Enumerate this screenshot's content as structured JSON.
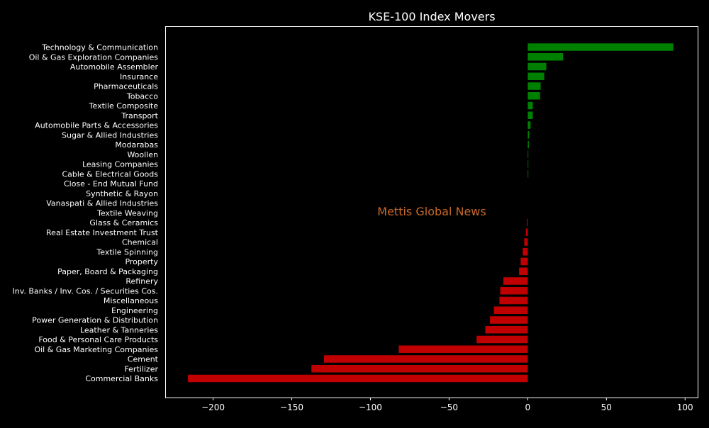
{
  "chart_data": {
    "type": "bar",
    "orientation": "horizontal",
    "title": "KSE-100 Index Movers",
    "watermark": "Mettis Global News",
    "xlabel": "",
    "ylabel": "",
    "xlim": [
      -230,
      108
    ],
    "xticks": [
      -200,
      -150,
      -100,
      -50,
      0,
      50,
      100
    ],
    "xtick_labels": [
      "−200",
      "−150",
      "−100",
      "−50",
      "0",
      "50",
      "100"
    ],
    "grid": false,
    "colors": {
      "positive": "#008000",
      "negative": "#c00000",
      "background": "#000000",
      "text": "#ffffff",
      "watermark": "#c8692a"
    },
    "categories": [
      "Technology & Communication",
      "Oil & Gas Exploration Companies",
      "Automobile Assembler",
      "Insurance",
      "Pharmaceuticals",
      "Tobacco",
      "Textile Composite",
      "Transport",
      "Automobile Parts & Accessories",
      "Sugar & Allied Industries",
      "Modarabas",
      "Woollen",
      "Leasing Companies",
      "Cable & Electrical Goods",
      "Close - End Mutual Fund",
      "Synthetic & Rayon",
      "Vanaspati & Allied Industries",
      "Textile Weaving",
      "Glass & Ceramics",
      "Real Estate Investment Trust",
      "Chemical",
      "Textile Spinning",
      "Property",
      "Paper, Board & Packaging",
      "Refinery",
      "Inv. Banks / Inv. Cos. / Securities Cos.",
      "Miscellaneous",
      "Engineering",
      "Power Generation & Distribution",
      "Leather & Tanneries",
      "Food & Personal Care Products",
      "Oil & Gas Marketing Companies",
      "Cement",
      "Fertilizer",
      "Commercial Banks"
    ],
    "values": [
      92.5,
      22.5,
      11.8,
      10.5,
      8.2,
      7.8,
      3.2,
      3.2,
      1.8,
      0.9,
      0.7,
      0.3,
      0.2,
      0.2,
      0.0,
      0.0,
      0.0,
      0.0,
      -0.5,
      -1.2,
      -2.2,
      -3.2,
      -4.5,
      -5.5,
      -15.5,
      -17.5,
      -18.0,
      -21.5,
      -24.0,
      -27.0,
      -32.5,
      -82.0,
      -129.5,
      -137.5,
      -216.0
    ]
  }
}
